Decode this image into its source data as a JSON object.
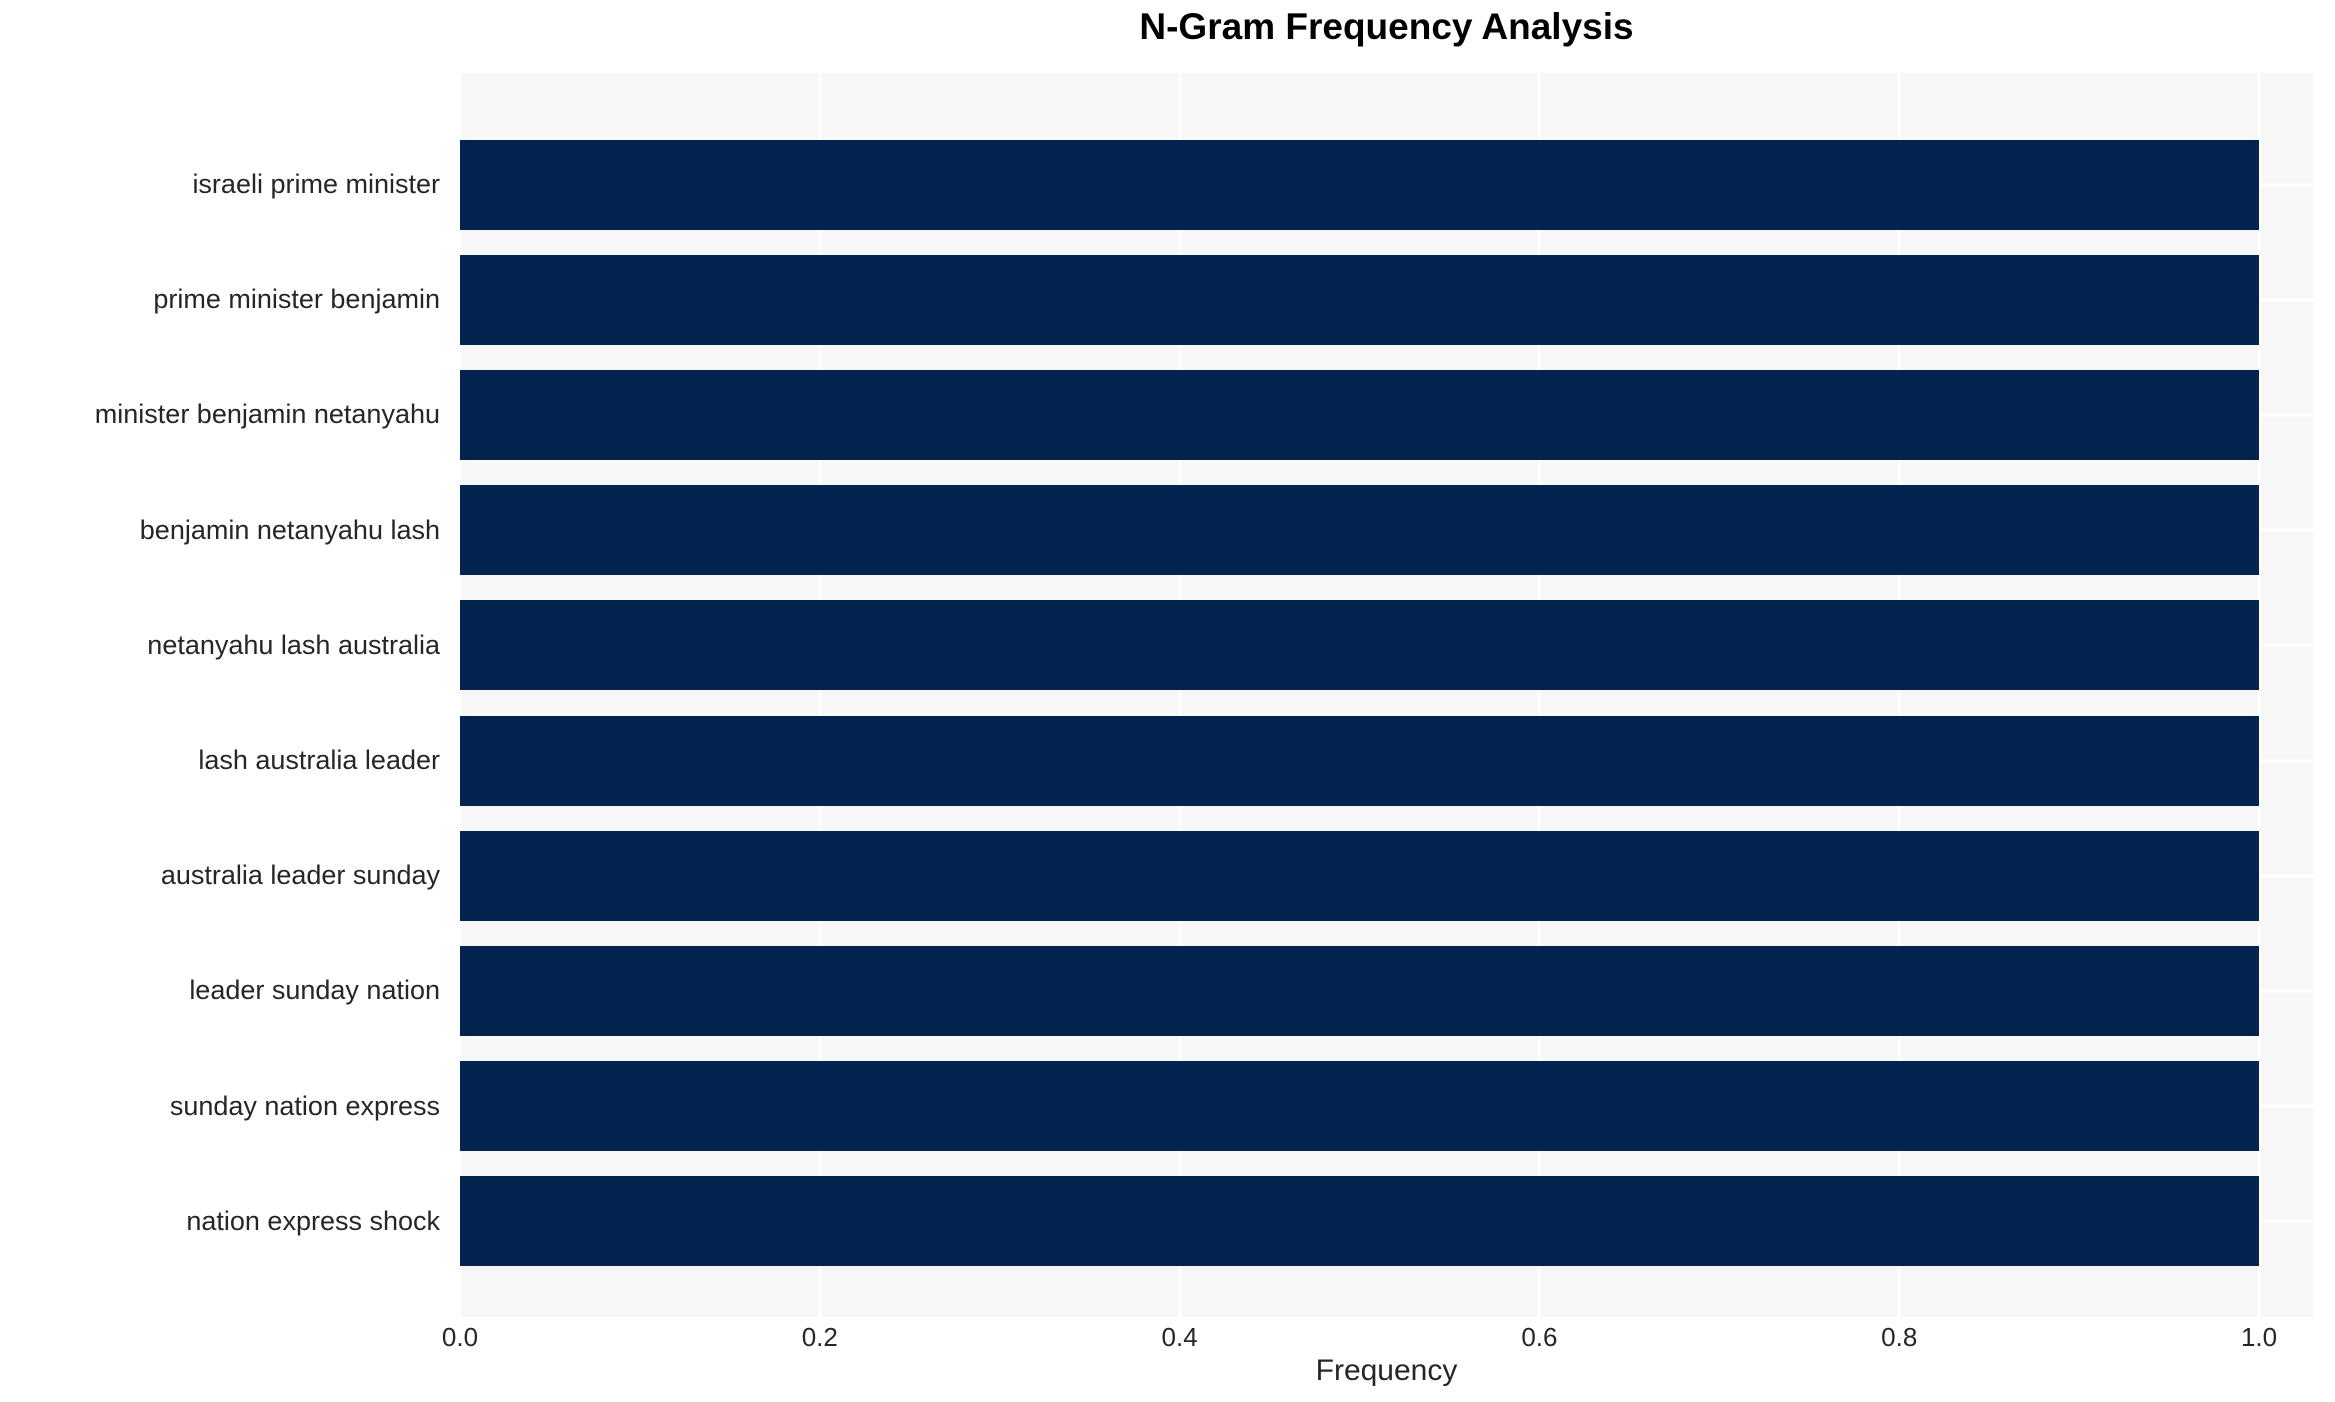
{
  "title": "N-Gram Frequency Analysis",
  "xlabel": "Frequency",
  "colors": {
    "figure_bg": "#ffffff",
    "plot_bg": "#f7f7f8",
    "gridline": "#ffffff",
    "bar": "#03244f",
    "title_text": "#000000",
    "axis_text": "#262626"
  },
  "chart_data": {
    "type": "bar",
    "orientation": "horizontal",
    "title": "N-Gram Frequency Analysis",
    "xlabel": "Frequency",
    "ylabel": "",
    "categories": [
      "israeli prime minister",
      "prime minister benjamin",
      "minister benjamin netanyahu",
      "benjamin netanyahu lash",
      "netanyahu lash australia",
      "lash australia leader",
      "australia leader sunday",
      "leader sunday nation",
      "sunday nation express",
      "nation express shock"
    ],
    "values": [
      1.0,
      1.0,
      1.0,
      1.0,
      1.0,
      1.0,
      1.0,
      1.0,
      1.0,
      1.0
    ],
    "xlim": [
      0,
      1.03
    ],
    "xticks": [
      0.0,
      0.2,
      0.4,
      0.6,
      0.8,
      1.0
    ],
    "xtick_labels": [
      "0.0",
      "0.2",
      "0.4",
      "0.6",
      "0.8",
      "1.0"
    ],
    "grid": true,
    "grid_color": "#ffffff",
    "legend": false,
    "bar_color": "#03244f"
  }
}
